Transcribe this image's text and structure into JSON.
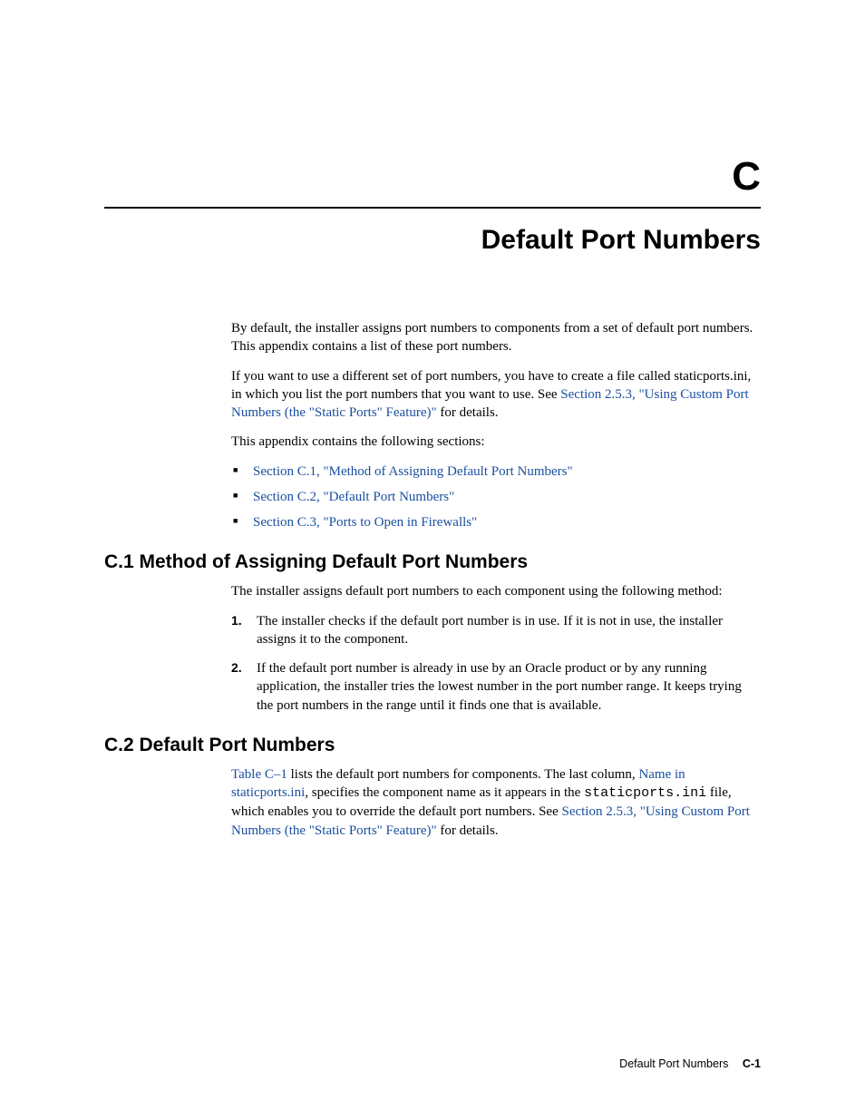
{
  "appendix_letter": "C",
  "chapter_title": "Default Port Numbers",
  "intro": {
    "p1": "By default, the installer assigns port numbers to components from a set of default port numbers. This appendix contains a list of these port numbers.",
    "p2_a": "If you want to use a different set of port numbers, you have to create a file called staticports.ini, in which you list the port numbers that you want to use. See ",
    "p2_link": "Section 2.5.3, \"Using Custom Port Numbers (the \"Static Ports\" Feature)\"",
    "p2_b": " for details.",
    "p3": "This appendix contains the following sections:"
  },
  "toc": {
    "item1": "Section C.1, \"Method of Assigning Default Port Numbers\"",
    "item2": "Section C.2, \"Default Port Numbers\"",
    "item3": "Section C.3, \"Ports to Open in Firewalls\""
  },
  "c1": {
    "heading": "C.1  Method of Assigning Default Port Numbers",
    "p1": "The installer assigns default port numbers to each component using the following method:",
    "step1_num": "1.",
    "step1": "The installer checks if the default port number is in use. If it is not in use, the installer assigns it to the component.",
    "step2_num": "2.",
    "step2": "If the default port number is already in use by an Oracle product or by any running application, the installer tries the lowest number in the port number range. It keeps trying the port numbers in the range until it finds one that is available."
  },
  "c2": {
    "heading": "C.2  Default Port Numbers",
    "p1_link1": "Table C–1",
    "p1_a": " lists the default port numbers for components. The last column, ",
    "p1_link2": "Name in staticports.ini",
    "p1_b": ", specifies the component name as it appears in the ",
    "p1_mono": "staticports.ini",
    "p1_c": " file, which enables you to override the default port numbers. See ",
    "p1_link3": "Section 2.5.3, \"Using Custom Port Numbers (the \"Static Ports\" Feature)\"",
    "p1_d": " for details."
  },
  "footer": {
    "title": "Default Port Numbers",
    "page": "C-1"
  },
  "colors": {
    "link": "#1a4fa0",
    "text": "#000000",
    "background": "#ffffff"
  }
}
